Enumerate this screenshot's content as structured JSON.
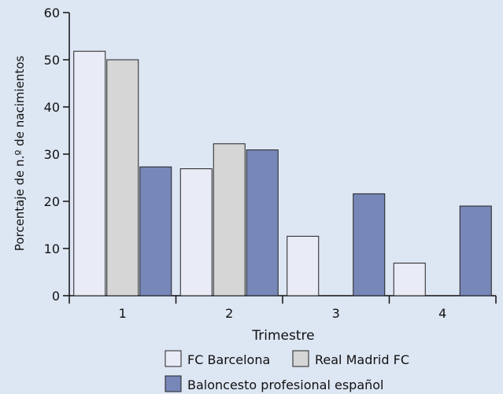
{
  "chart_data": {
    "type": "bar",
    "title": "",
    "xlabel": "Trimestre",
    "ylabel": "Porcentaje de n.º de nacimientos",
    "categories": [
      "1",
      "2",
      "3",
      "4"
    ],
    "ylim": [
      0,
      60
    ],
    "yticks": [
      0,
      10,
      20,
      30,
      40,
      50,
      60
    ],
    "grid": false,
    "legend_position": "bottom",
    "series": [
      {
        "name": "FC Barcelona",
        "values": [
          51.8,
          26.9,
          12.6,
          6.9
        ],
        "color": "#e9ebf6"
      },
      {
        "name": "Real Madrid FC",
        "values": [
          50.0,
          32.2,
          null,
          null
        ],
        "color": "#d6d6d6"
      },
      {
        "name": "Baloncesto profesional español",
        "values": [
          27.3,
          30.9,
          21.6,
          19.0
        ],
        "color": "#7787b8"
      }
    ]
  },
  "colors": {
    "background": "#dde6f3",
    "axis": "#111111",
    "bar_stroke": "#222222"
  }
}
